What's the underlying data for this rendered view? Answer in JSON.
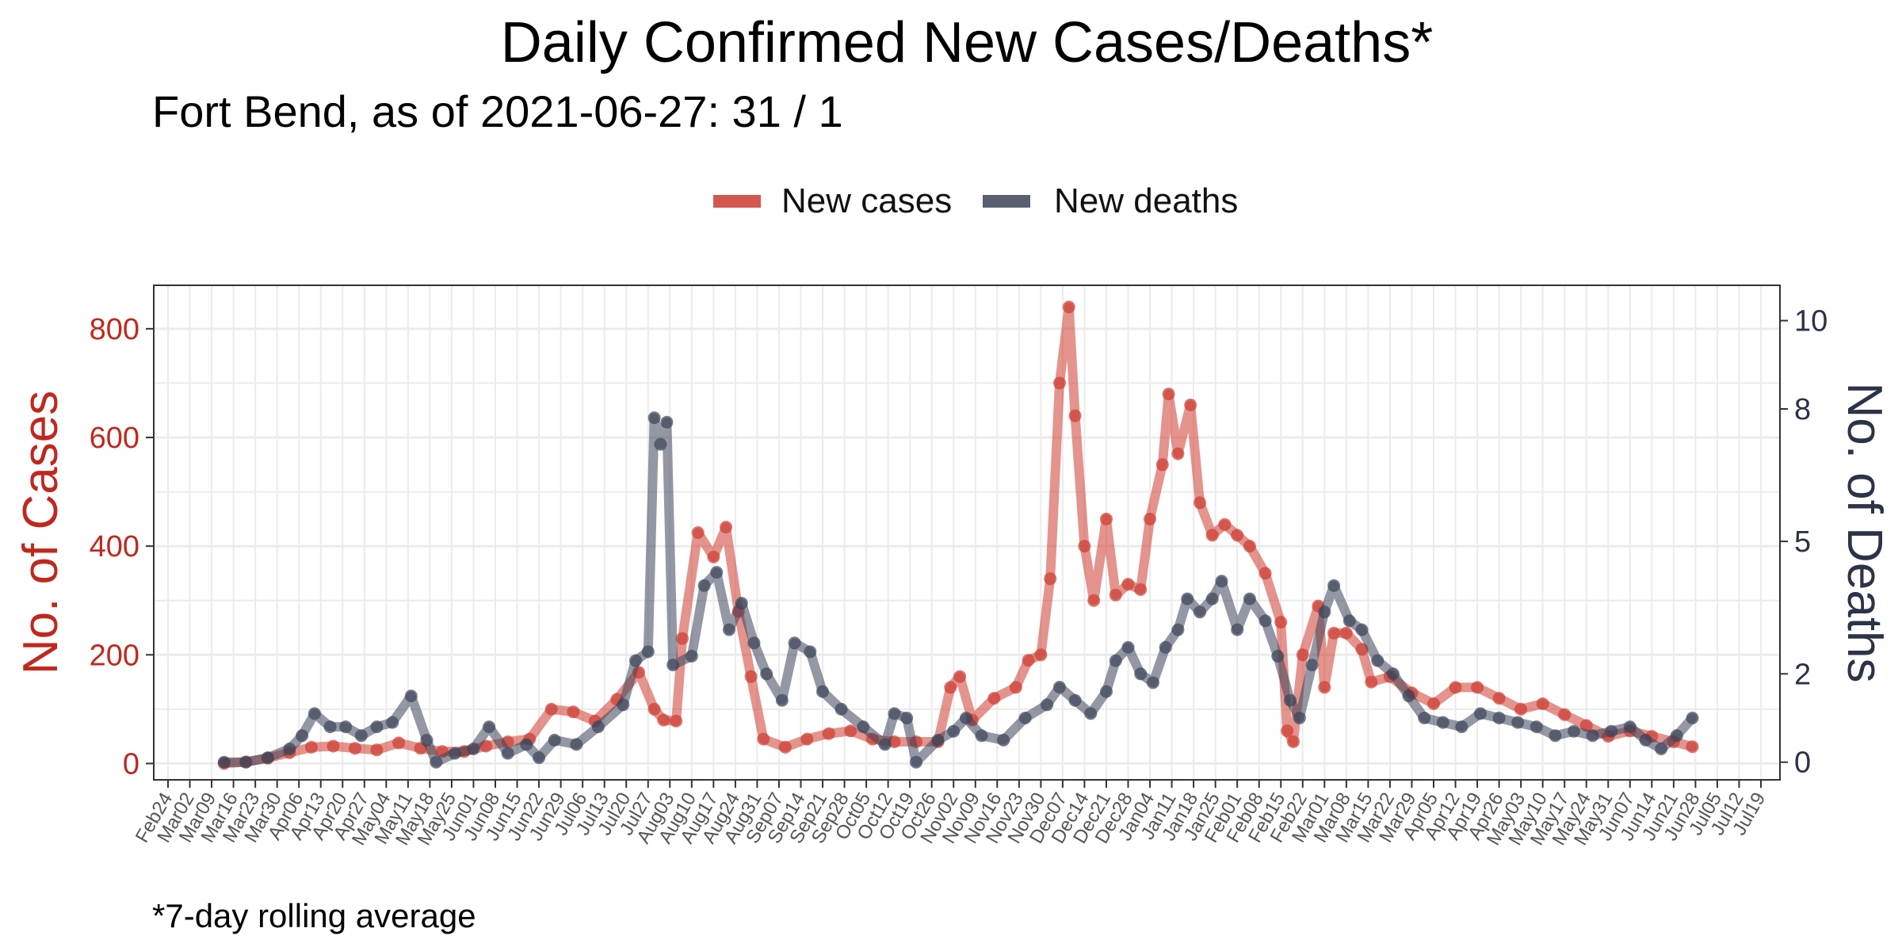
{
  "chart_data": {
    "type": "line",
    "title": "Daily Confirmed New Cases/Deaths*",
    "subtitle": "Fort Bend, as of 2021-06-27:  31 / 1",
    "ylabel_left": "No. of Cases",
    "ylabel_right": "No. of Deaths",
    "caption": "*7-day rolling average",
    "ylim_left": [
      -30,
      880
    ],
    "ylim_right": [
      -0.4,
      10.8
    ],
    "yticks_left": [
      "0",
      "200",
      "400",
      "600",
      "800"
    ],
    "yticks_right": [
      "0",
      "2",
      "5",
      "8",
      "10"
    ],
    "xlim": [
      "2020-02-24",
      "2021-07-19"
    ],
    "legend_position": "top",
    "grid": true,
    "colors": {
      "cases": "#cd3a30",
      "deaths": "#3c4459"
    },
    "x_tick_labels": [
      "Feb24",
      "Mar02",
      "Mar09",
      "Mar16",
      "Mar23",
      "Mar30",
      "Apr06",
      "Apr13",
      "Apr20",
      "Apr27",
      "May04",
      "May11",
      "May18",
      "May25",
      "Jun01",
      "Jun08",
      "Jun15",
      "Jun22",
      "Jun29",
      "Jul06",
      "Jul13",
      "Jul20",
      "Jul27",
      "Aug03",
      "Aug10",
      "Aug17",
      "Aug24",
      "Aug31",
      "Sep07",
      "Sep14",
      "Sep21",
      "Sep28",
      "Oct05",
      "Oct12",
      "Oct19",
      "Oct26",
      "Nov02",
      "Nov09",
      "Nov16",
      "Nov23",
      "Nov30",
      "Dec07",
      "Dec14",
      "Dec21",
      "Dec28",
      "Jan04",
      "Jan11",
      "Jan18",
      "Jan25",
      "Feb01",
      "Feb08",
      "Feb15",
      "Feb22",
      "Mar01",
      "Mar08",
      "Mar15",
      "Mar22",
      "Mar29",
      "Apr05",
      "Apr12",
      "Apr19",
      "Apr26",
      "May03",
      "May10",
      "May17",
      "May24",
      "May31",
      "Jun07",
      "Jun14",
      "Jun21",
      "Jun28",
      "Jul05",
      "Jul12",
      "Jul19"
    ],
    "series": [
      {
        "name": "New cases",
        "key": "cases",
        "points": [
          [
            "2020-03-13",
            0
          ],
          [
            "2020-03-20",
            3
          ],
          [
            "2020-03-27",
            10
          ],
          [
            "2020-04-03",
            20
          ],
          [
            "2020-04-10",
            30
          ],
          [
            "2020-04-17",
            32
          ],
          [
            "2020-04-24",
            28
          ],
          [
            "2020-05-01",
            25
          ],
          [
            "2020-05-08",
            38
          ],
          [
            "2020-05-15",
            28
          ],
          [
            "2020-05-22",
            22
          ],
          [
            "2020-05-29",
            22
          ],
          [
            "2020-06-05",
            32
          ],
          [
            "2020-06-12",
            40
          ],
          [
            "2020-06-19",
            45
          ],
          [
            "2020-06-26",
            100
          ],
          [
            "2020-07-03",
            95
          ],
          [
            "2020-07-10",
            78
          ],
          [
            "2020-07-17",
            118
          ],
          [
            "2020-07-24",
            168
          ],
          [
            "2020-07-29",
            100
          ],
          [
            "2020-08-01",
            80
          ],
          [
            "2020-08-05",
            78
          ],
          [
            "2020-08-07",
            230
          ],
          [
            "2020-08-12",
            425
          ],
          [
            "2020-08-17",
            380
          ],
          [
            "2020-08-21",
            435
          ],
          [
            "2020-08-25",
            280
          ],
          [
            "2020-08-29",
            160
          ],
          [
            "2020-09-02",
            45
          ],
          [
            "2020-09-09",
            30
          ],
          [
            "2020-09-16",
            45
          ],
          [
            "2020-09-23",
            55
          ],
          [
            "2020-09-30",
            60
          ],
          [
            "2020-10-07",
            45
          ],
          [
            "2020-10-14",
            40
          ],
          [
            "2020-10-21",
            40
          ],
          [
            "2020-10-28",
            40
          ],
          [
            "2020-11-01",
            140
          ],
          [
            "2020-11-04",
            160
          ],
          [
            "2020-11-08",
            80
          ],
          [
            "2020-11-15",
            120
          ],
          [
            "2020-11-22",
            140
          ],
          [
            "2020-11-26",
            190
          ],
          [
            "2020-11-30",
            200
          ],
          [
            "2020-12-03",
            340
          ],
          [
            "2020-12-06",
            700
          ],
          [
            "2020-12-09",
            840
          ],
          [
            "2020-12-11",
            640
          ],
          [
            "2020-12-14",
            400
          ],
          [
            "2020-12-17",
            300
          ],
          [
            "2020-12-21",
            450
          ],
          [
            "2020-12-24",
            310
          ],
          [
            "2020-12-28",
            330
          ],
          [
            "2021-01-01",
            320
          ],
          [
            "2021-01-04",
            450
          ],
          [
            "2021-01-08",
            550
          ],
          [
            "2021-01-10",
            680
          ],
          [
            "2021-01-13",
            570
          ],
          [
            "2021-01-17",
            660
          ],
          [
            "2021-01-20",
            480
          ],
          [
            "2021-01-24",
            420
          ],
          [
            "2021-01-28",
            440
          ],
          [
            "2021-02-01",
            420
          ],
          [
            "2021-02-05",
            400
          ],
          [
            "2021-02-10",
            350
          ],
          [
            "2021-02-15",
            260
          ],
          [
            "2021-02-17",
            60
          ],
          [
            "2021-02-19",
            40
          ],
          [
            "2021-02-22",
            200
          ],
          [
            "2021-02-27",
            290
          ],
          [
            "2021-03-01",
            140
          ],
          [
            "2021-03-04",
            240
          ],
          [
            "2021-03-08",
            240
          ],
          [
            "2021-03-13",
            210
          ],
          [
            "2021-03-16",
            150
          ],
          [
            "2021-03-22",
            160
          ],
          [
            "2021-03-29",
            130
          ],
          [
            "2021-04-05",
            110
          ],
          [
            "2021-04-12",
            140
          ],
          [
            "2021-04-19",
            140
          ],
          [
            "2021-04-26",
            120
          ],
          [
            "2021-05-03",
            100
          ],
          [
            "2021-05-10",
            110
          ],
          [
            "2021-05-17",
            90
          ],
          [
            "2021-05-24",
            70
          ],
          [
            "2021-05-31",
            50
          ],
          [
            "2021-06-07",
            60
          ],
          [
            "2021-06-14",
            50
          ],
          [
            "2021-06-21",
            40
          ],
          [
            "2021-06-27",
            31
          ]
        ]
      },
      {
        "name": "New deaths",
        "key": "deaths",
        "points": [
          [
            "2020-03-13",
            0
          ],
          [
            "2020-03-20",
            0
          ],
          [
            "2020-03-27",
            0.1
          ],
          [
            "2020-04-03",
            0.3
          ],
          [
            "2020-04-07",
            0.6
          ],
          [
            "2020-04-11",
            1.1
          ],
          [
            "2020-04-16",
            0.8
          ],
          [
            "2020-04-21",
            0.8
          ],
          [
            "2020-04-26",
            0.6
          ],
          [
            "2020-05-01",
            0.8
          ],
          [
            "2020-05-06",
            0.9
          ],
          [
            "2020-05-12",
            1.5
          ],
          [
            "2020-05-17",
            0.5
          ],
          [
            "2020-05-20",
            0
          ],
          [
            "2020-05-26",
            0.2
          ],
          [
            "2020-06-01",
            0.3
          ],
          [
            "2020-06-06",
            0.8
          ],
          [
            "2020-06-12",
            0.2
          ],
          [
            "2020-06-18",
            0.4
          ],
          [
            "2020-06-22",
            0.1
          ],
          [
            "2020-06-27",
            0.5
          ],
          [
            "2020-07-04",
            0.4
          ],
          [
            "2020-07-11",
            0.8
          ],
          [
            "2020-07-19",
            1.3
          ],
          [
            "2020-07-23",
            2.3
          ],
          [
            "2020-07-27",
            2.5
          ],
          [
            "2020-07-29",
            7.8
          ],
          [
            "2020-07-31",
            7.2
          ],
          [
            "2020-08-02",
            7.7
          ],
          [
            "2020-08-04",
            2.2
          ],
          [
            "2020-08-10",
            2.4
          ],
          [
            "2020-08-14",
            4.0
          ],
          [
            "2020-08-18",
            4.3
          ],
          [
            "2020-08-22",
            3.0
          ],
          [
            "2020-08-26",
            3.6
          ],
          [
            "2020-08-30",
            2.7
          ],
          [
            "2020-09-03",
            2.0
          ],
          [
            "2020-09-08",
            1.4
          ],
          [
            "2020-09-12",
            2.7
          ],
          [
            "2020-09-17",
            2.5
          ],
          [
            "2020-09-21",
            1.6
          ],
          [
            "2020-09-27",
            1.2
          ],
          [
            "2020-10-04",
            0.8
          ],
          [
            "2020-10-11",
            0.4
          ],
          [
            "2020-10-14",
            1.1
          ],
          [
            "2020-10-18",
            1.0
          ],
          [
            "2020-10-21",
            0
          ],
          [
            "2020-10-28",
            0.5
          ],
          [
            "2020-11-02",
            0.7
          ],
          [
            "2020-11-06",
            1.0
          ],
          [
            "2020-11-11",
            0.6
          ],
          [
            "2020-11-18",
            0.5
          ],
          [
            "2020-11-25",
            1.0
          ],
          [
            "2020-12-02",
            1.3
          ],
          [
            "2020-12-06",
            1.7
          ],
          [
            "2020-12-11",
            1.4
          ],
          [
            "2020-12-16",
            1.1
          ],
          [
            "2020-12-21",
            1.6
          ],
          [
            "2020-12-24",
            2.3
          ],
          [
            "2020-12-28",
            2.6
          ],
          [
            "2021-01-01",
            2.0
          ],
          [
            "2021-01-05",
            1.8
          ],
          [
            "2021-01-09",
            2.6
          ],
          [
            "2021-01-13",
            3.0
          ],
          [
            "2021-01-16",
            3.7
          ],
          [
            "2021-01-20",
            3.4
          ],
          [
            "2021-01-24",
            3.7
          ],
          [
            "2021-01-27",
            4.1
          ],
          [
            "2021-02-01",
            3.0
          ],
          [
            "2021-02-05",
            3.7
          ],
          [
            "2021-02-10",
            3.2
          ],
          [
            "2021-02-14",
            2.4
          ],
          [
            "2021-02-18",
            1.4
          ],
          [
            "2021-02-21",
            1.0
          ],
          [
            "2021-02-25",
            2.2
          ],
          [
            "2021-03-01",
            3.4
          ],
          [
            "2021-03-04",
            4.0
          ],
          [
            "2021-03-09",
            3.2
          ],
          [
            "2021-03-13",
            3.0
          ],
          [
            "2021-03-18",
            2.3
          ],
          [
            "2021-03-23",
            2.0
          ],
          [
            "2021-03-28",
            1.5
          ],
          [
            "2021-04-02",
            1.0
          ],
          [
            "2021-04-08",
            0.9
          ],
          [
            "2021-04-14",
            0.8
          ],
          [
            "2021-04-20",
            1.1
          ],
          [
            "2021-04-26",
            1.0
          ],
          [
            "2021-05-02",
            0.9
          ],
          [
            "2021-05-08",
            0.8
          ],
          [
            "2021-05-14",
            0.6
          ],
          [
            "2021-05-20",
            0.7
          ],
          [
            "2021-05-26",
            0.6
          ],
          [
            "2021-06-01",
            0.7
          ],
          [
            "2021-06-07",
            0.8
          ],
          [
            "2021-06-12",
            0.5
          ],
          [
            "2021-06-17",
            0.3
          ],
          [
            "2021-06-22",
            0.6
          ],
          [
            "2021-06-27",
            1.0
          ]
        ]
      }
    ]
  }
}
